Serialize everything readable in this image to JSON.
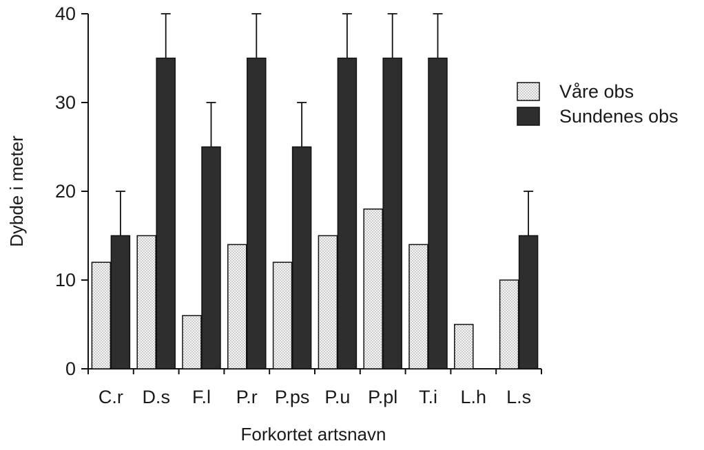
{
  "chart_data": {
    "type": "bar",
    "title": "",
    "xlabel": "Forkortet artsnavn",
    "ylabel": "Dybde i meter",
    "categories": [
      "C.r",
      "D.s",
      "F.l",
      "P.r",
      "P.ps",
      "P.u",
      "P.pl",
      "T.i",
      "L.h",
      "L.s"
    ],
    "ylim": [
      0,
      40
    ],
    "yticks": [
      "0",
      "10",
      "20",
      "30",
      "40"
    ],
    "ytick_values": [
      0,
      10,
      20,
      30,
      40
    ],
    "grid": false,
    "legend_position": "top-right",
    "series": [
      {
        "name": "Våre obs",
        "values": [
          12,
          15,
          6,
          14,
          12,
          15,
          18,
          14,
          5,
          10
        ],
        "error_upper": [
          null,
          null,
          null,
          null,
          null,
          null,
          null,
          null,
          null,
          null
        ],
        "pattern": "dotted-light",
        "color": "#eeeeee"
      },
      {
        "name": "Sundenes obs",
        "values": [
          15,
          35,
          25,
          35,
          25,
          35,
          35,
          35,
          0,
          15
        ],
        "error_upper": [
          5,
          5,
          5,
          5,
          5,
          5,
          5,
          5,
          null,
          5
        ],
        "pattern": "solid-dark",
        "color": "#2e2e2e"
      }
    ]
  }
}
